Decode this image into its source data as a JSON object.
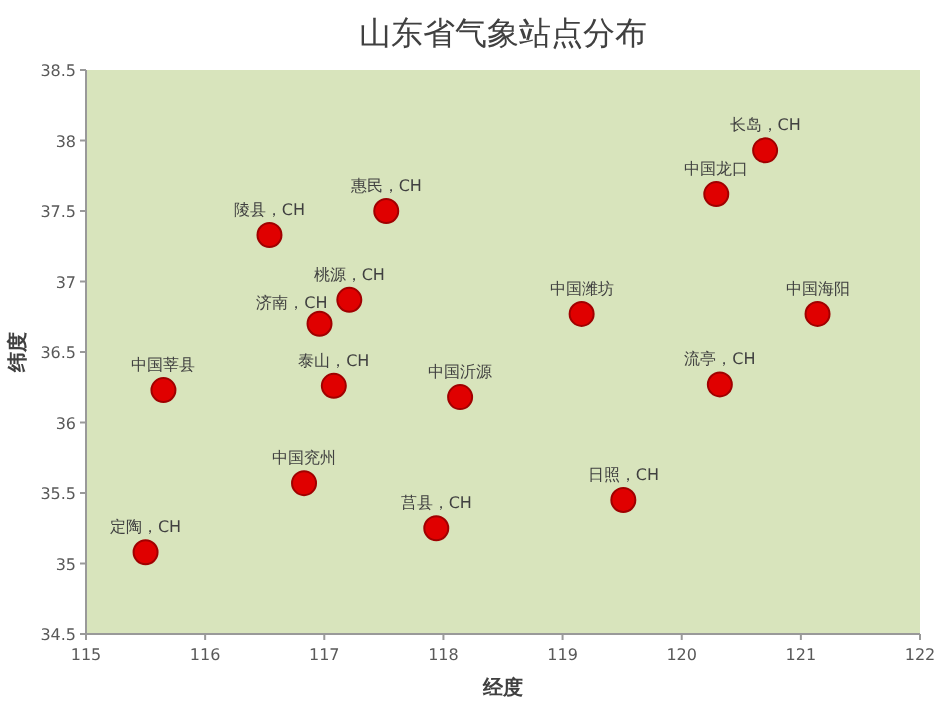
{
  "chart_data": {
    "type": "scatter",
    "title": "山东省气象站点分布",
    "xlabel": "经度",
    "ylabel": "纬度",
    "xlim": [
      115,
      122
    ],
    "xticks": [
      115,
      116,
      117,
      118,
      119,
      120,
      121,
      122
    ],
    "ylim": [
      34.5,
      38.5
    ],
    "yticks": [
      34.5,
      35,
      35.5,
      36,
      36.5,
      37,
      37.5,
      38,
      38.5
    ],
    "grid": false,
    "marker": "circle",
    "series": [
      {
        "color": "#e00000",
        "x": [
          115.5,
          115.65,
          116.54,
          117.52,
          116.96,
          117.21,
          117.08,
          116.83,
          118.14,
          117.94,
          119.16,
          119.51,
          120.29,
          120.7,
          121.14,
          120.32
        ],
        "values": [
          35.08,
          36.23,
          37.33,
          37.5,
          36.7,
          36.87,
          36.26,
          35.57,
          36.18,
          35.25,
          36.77,
          35.45,
          37.62,
          37.93,
          36.77,
          36.27
        ]
      }
    ],
    "annotations": [
      {
        "text": "定陶，CH",
        "x": 115.5,
        "y": 35.08
      },
      {
        "text": "中国莘县",
        "x": 115.65,
        "y": 36.23
      },
      {
        "text": "陵县，CH",
        "x": 116.54,
        "y": 37.33
      },
      {
        "text": "惠民，CH",
        "x": 117.52,
        "y": 37.5
      },
      {
        "text": "济南，CH",
        "x": 116.96,
        "y": 36.7
      },
      {
        "text": "桃源，CH",
        "x": 117.21,
        "y": 36.87
      },
      {
        "text": "泰山，CH",
        "x": 117.08,
        "y": 36.26
      },
      {
        "text": "中国兖州",
        "x": 116.83,
        "y": 35.57
      },
      {
        "text": "中国沂源",
        "x": 118.14,
        "y": 36.18
      },
      {
        "text": "莒县，CH",
        "x": 117.94,
        "y": 35.25
      },
      {
        "text": "中国潍坊",
        "x": 119.16,
        "y": 36.77
      },
      {
        "text": "日照，CH",
        "x": 119.51,
        "y": 35.45
      },
      {
        "text": "中国龙口",
        "x": 120.29,
        "y": 37.62
      },
      {
        "text": "长岛，CH",
        "x": 120.7,
        "y": 37.93
      },
      {
        "text": "中国海阳",
        "x": 121.14,
        "y": 36.77
      },
      {
        "text": "流亭，CH",
        "x": 120.32,
        "y": 36.27
      }
    ]
  }
}
